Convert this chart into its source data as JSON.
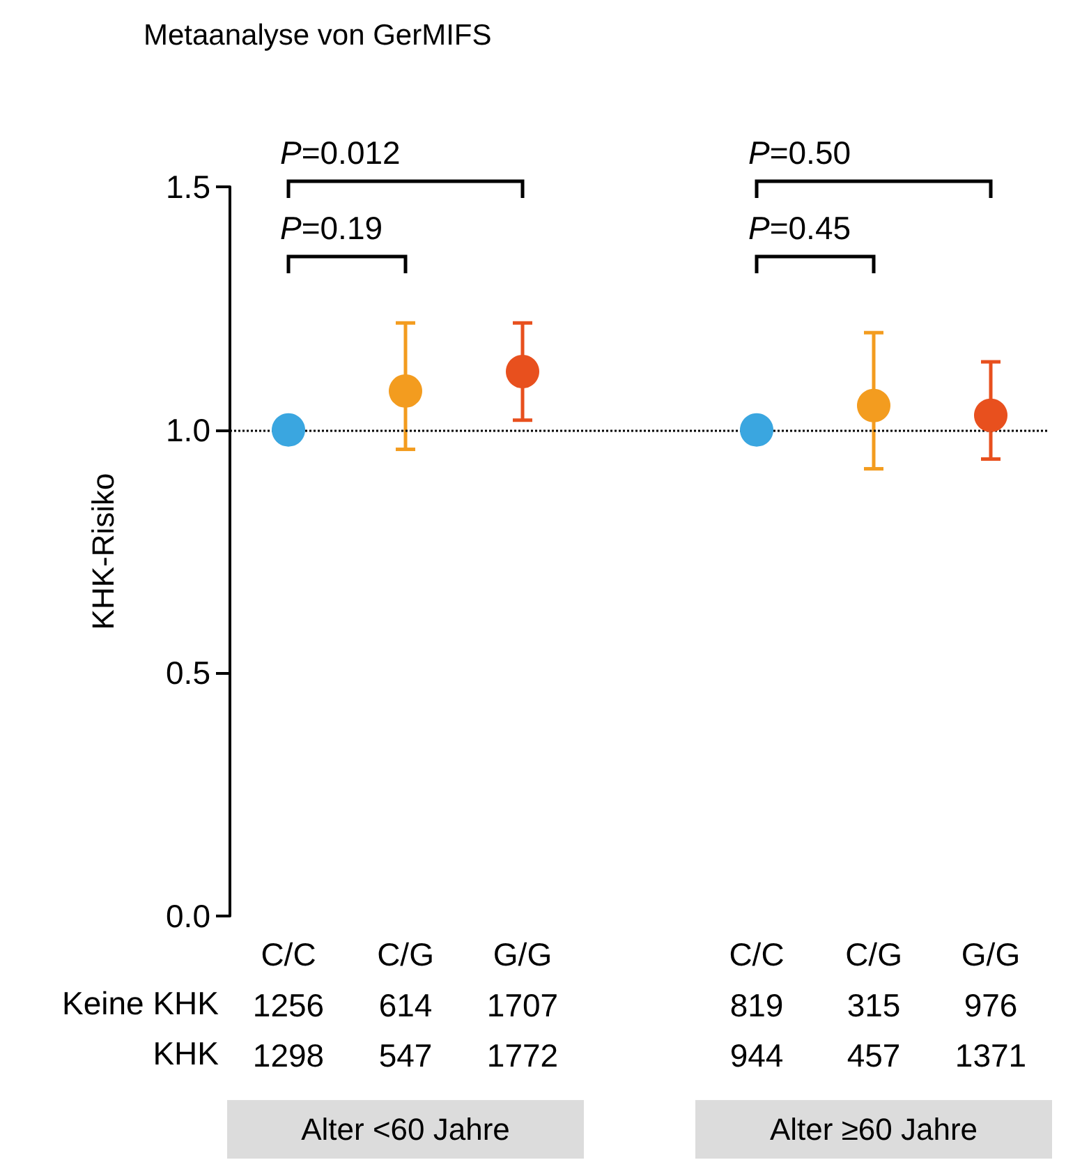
{
  "chart_data": {
    "type": "scatter",
    "title": "Metaanalyse von GerMIFS",
    "ylabel": "KHK-Risiko",
    "categories": [
      "C/C",
      "C/G",
      "G/G",
      null,
      "C/C",
      "C/G",
      "G/G"
    ],
    "values": [
      1,
      1.08,
      1.12,
      null,
      1,
      1.05,
      1.03
    ],
    "colors": [
      "#3aa6e0",
      "#f39c1f",
      "#e8501e",
      null,
      "#3aa6e0",
      "#f39c1f",
      "#e8501e"
    ],
    "errors": [
      null,
      [
        0.96,
        1.22
      ],
      [
        1.02,
        1.22
      ],
      null,
      null,
      [
        0.92,
        1.2
      ],
      [
        0.94,
        1.14
      ]
    ],
    "ylim": [
      0,
      1.5
    ],
    "yticks": [
      {
        "value": 0,
        "label": "0.0"
      },
      {
        "value": 0.5,
        "label": "0.5"
      },
      {
        "value": 1,
        "label": "1.0"
      },
      {
        "value": 1.5,
        "label": "1.5"
      }
    ],
    "ref_lines": [
      {
        "axis": "y",
        "value": 1,
        "label": null,
        "color": "#000000",
        "line_style": "dotted"
      }
    ],
    "annotations": [
      "P=0.012",
      "P=0.19",
      "P=0.50",
      "P=0.45",
      "Keine KHK",
      "1256",
      "614",
      "1707",
      "819",
      "315",
      "976",
      "KHK",
      "1298",
      "547",
      "1772",
      "944",
      "457",
      "1371",
      "Alter <60 Jahre",
      "Alter ≥60 Jahre"
    ],
    "grid": false,
    "marker": "circle"
  }
}
